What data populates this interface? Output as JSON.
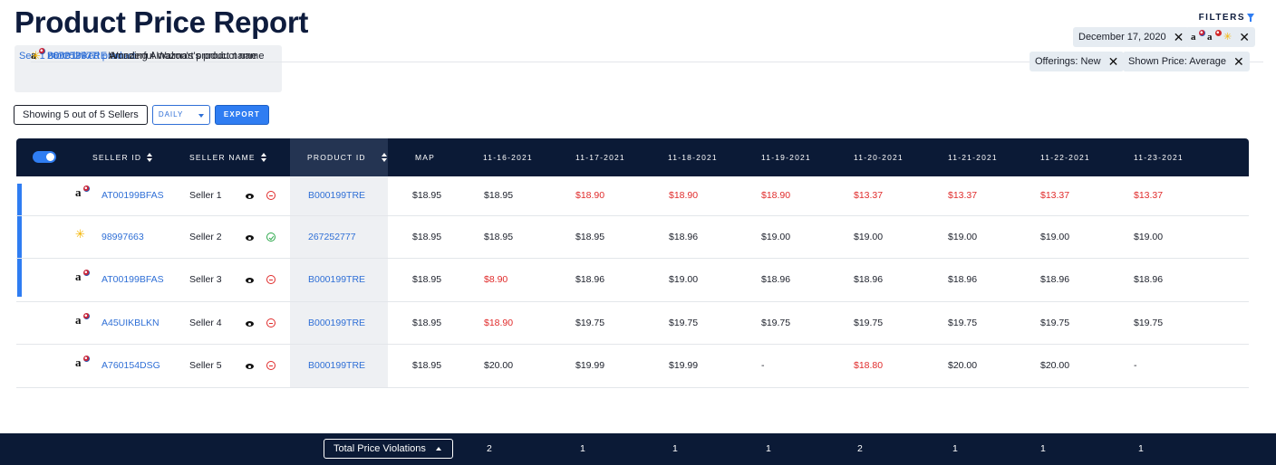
{
  "page_title": "Product Price Report",
  "linked_products": {
    "items": [
      {
        "marketplace_icon": "amazon-logo-icon",
        "id": "B000199TRE",
        "name": "Amazing Amazon's product name"
      },
      {
        "marketplace_icon": "walmart-logo-icon",
        "id": "267252777",
        "name": "Wonderful Walmart's product name"
      }
    ],
    "more_link": "See 1 more linked product"
  },
  "controls": {
    "showing": "Showing 5 out of 5 Sellers",
    "interval": "DAILY",
    "export_label": "EXPORT"
  },
  "filters": {
    "label": "FILTERS",
    "chips": [
      {
        "label": "December 17, 2020"
      },
      {
        "label": ""
      },
      {
        "label": "Offerings: New"
      },
      {
        "label": "Shown Price: Average"
      }
    ]
  },
  "table": {
    "headers": {
      "seller_id": "SELLER ID",
      "seller_name": "SELLER NAME",
      "product_id": "PRODUCT ID",
      "map": "MAP",
      "dates": [
        "11-16-2021",
        "11-17-2021",
        "11-18-2021",
        "11-19-2021",
        "11-20-2021",
        "11-21-2021",
        "11-22-2021",
        "11-23-2021"
      ]
    },
    "rows": [
      {
        "marketplace": "amazon",
        "seller_id": "AT00199BFAS",
        "seller_name": "Seller 1",
        "status": "blocked",
        "product_id": "B000199TRE",
        "map": "$18.95",
        "selected": true,
        "prices": [
          {
            "v": "$18.95",
            "violation": false
          },
          {
            "v": "$18.90",
            "violation": true
          },
          {
            "v": "$18.90",
            "violation": true
          },
          {
            "v": "$18.90",
            "violation": true
          },
          {
            "v": "$13.37",
            "violation": true
          },
          {
            "v": "$13.37",
            "violation": true
          },
          {
            "v": "$13.37",
            "violation": true
          },
          {
            "v": "$13.37",
            "violation": true
          }
        ]
      },
      {
        "marketplace": "walmart",
        "seller_id": "98997663",
        "seller_name": "Seller 2",
        "status": "ok",
        "product_id": "267252777",
        "map": "$18.95",
        "selected": true,
        "prices": [
          {
            "v": "$18.95",
            "violation": false
          },
          {
            "v": "$18.95",
            "violation": false
          },
          {
            "v": "$18.96",
            "violation": false
          },
          {
            "v": "$19.00",
            "violation": false
          },
          {
            "v": "$19.00",
            "violation": false
          },
          {
            "v": "$19.00",
            "violation": false
          },
          {
            "v": "$19.00",
            "violation": false
          },
          {
            "v": "$19.00",
            "violation": false
          }
        ]
      },
      {
        "marketplace": "amazon",
        "seller_id": "AT00199BFAS",
        "seller_name": "Seller 3",
        "status": "blocked",
        "product_id": "B000199TRE",
        "map": "$18.95",
        "selected": true,
        "prices": [
          {
            "v": "$8.90",
            "violation": true
          },
          {
            "v": "$18.96",
            "violation": false
          },
          {
            "v": "$19.00",
            "violation": false
          },
          {
            "v": "$18.96",
            "violation": false
          },
          {
            "v": "$18.96",
            "violation": false
          },
          {
            "v": "$18.96",
            "violation": false
          },
          {
            "v": "$18.96",
            "violation": false
          },
          {
            "v": "$18.96",
            "violation": false
          }
        ]
      },
      {
        "marketplace": "amazon",
        "seller_id": "A45UIKBLKN",
        "seller_name": "Seller 4",
        "status": "blocked",
        "product_id": "B000199TRE",
        "map": "$18.95",
        "selected": false,
        "prices": [
          {
            "v": "$18.90",
            "violation": true
          },
          {
            "v": "$19.75",
            "violation": false
          },
          {
            "v": "$19.75",
            "violation": false
          },
          {
            "v": "$19.75",
            "violation": false
          },
          {
            "v": "$19.75",
            "violation": false
          },
          {
            "v": "$19.75",
            "violation": false
          },
          {
            "v": "$19.75",
            "violation": false
          },
          {
            "v": "$19.75",
            "violation": false
          }
        ]
      },
      {
        "marketplace": "amazon",
        "seller_id": "A760154DSG",
        "seller_name": "Seller 5",
        "status": "blocked",
        "product_id": "B000199TRE",
        "map": "$18.95",
        "selected": false,
        "prices": [
          {
            "v": "$20.00",
            "violation": false
          },
          {
            "v": "$19.99",
            "violation": false
          },
          {
            "v": "$19.99",
            "violation": false
          },
          {
            "v": "-",
            "violation": false
          },
          {
            "v": "$18.80",
            "violation": true
          },
          {
            "v": "$20.00",
            "violation": false
          },
          {
            "v": "$20.00",
            "violation": false
          },
          {
            "v": "-",
            "violation": false
          }
        ]
      }
    ]
  },
  "footer": {
    "total_label": "Total Price Violations",
    "counts": [
      "2",
      "1",
      "1",
      "1",
      "2",
      "1",
      "1",
      "1"
    ]
  },
  "colors": {
    "navy": "#0b1a36",
    "accent": "#2f7df2",
    "violation": "#e02b2b",
    "ok": "#2ba84a"
  }
}
